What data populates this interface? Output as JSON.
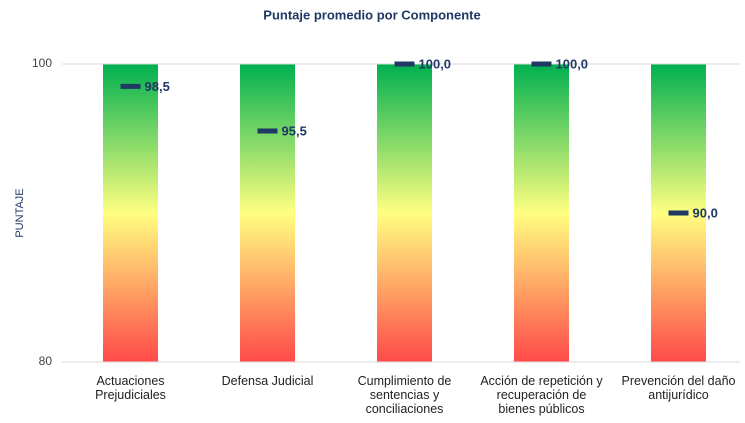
{
  "chart_data": {
    "type": "marker",
    "title": "Puntaje promedio por Componente",
    "y_label": "PUNTAJE",
    "categories": [
      "Actuaciones Prejudiciales",
      "Defensa Judicial",
      "Cumplimiento de sentencias y conciliaciones",
      "Acción de repetición y recuperación de bienes públicos",
      "Prevención del daño antijurídico"
    ],
    "values": [
      98.5,
      95.5,
      100,
      100,
      90
    ],
    "value_labels": [
      "98,5",
      "95,5",
      "100,0",
      "100,0",
      "90,0"
    ],
    "color": "#1f3864",
    "ylim": [
      80,
      100
    ],
    "yticks": [
      80,
      100
    ],
    "grid": true
  }
}
